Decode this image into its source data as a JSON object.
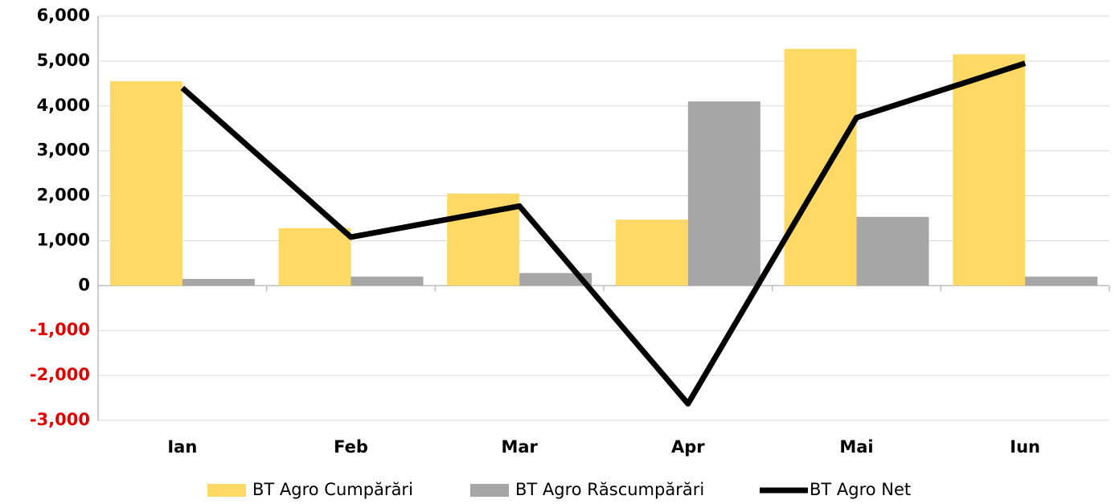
{
  "chart_data": {
    "type": "bar_line",
    "categories": [
      "Ian",
      "Feb",
      "Mar",
      "Apr",
      "Mai",
      "Iun"
    ],
    "series": [
      {
        "name": "BT Agro Cumpărări",
        "type": "bar",
        "color": "#ffd966",
        "values": [
          4550,
          1280,
          2050,
          1470,
          5270,
          5150
        ]
      },
      {
        "name": "BT Agro Răscumpărări",
        "type": "bar",
        "color": "#a6a6a6",
        "values": [
          150,
          200,
          280,
          4100,
          1530,
          200
        ]
      },
      {
        "name": "BT Agro Net",
        "type": "line",
        "color": "#000000",
        "values": [
          4400,
          1080,
          1770,
          -2630,
          3740,
          4950
        ]
      }
    ],
    "ylim": [
      -3000,
      6000
    ],
    "yticks": [
      {
        "value": -3000,
        "label": "-3,000"
      },
      {
        "value": -2000,
        "label": "-2,000"
      },
      {
        "value": -1000,
        "label": "-1,000"
      },
      0,
      {
        "value": 1000,
        "label": "1,000"
      },
      {
        "value": 2000,
        "label": "2,000"
      },
      {
        "value": 3000,
        "label": "3,000"
      },
      {
        "value": 4000,
        "label": "4,000"
      },
      {
        "value": 5000,
        "label": "5,000"
      },
      {
        "value": 6000,
        "label": "6,000"
      }
    ],
    "negative_tick_color": "#e00000",
    "grid": true,
    "legend": "bottom"
  }
}
